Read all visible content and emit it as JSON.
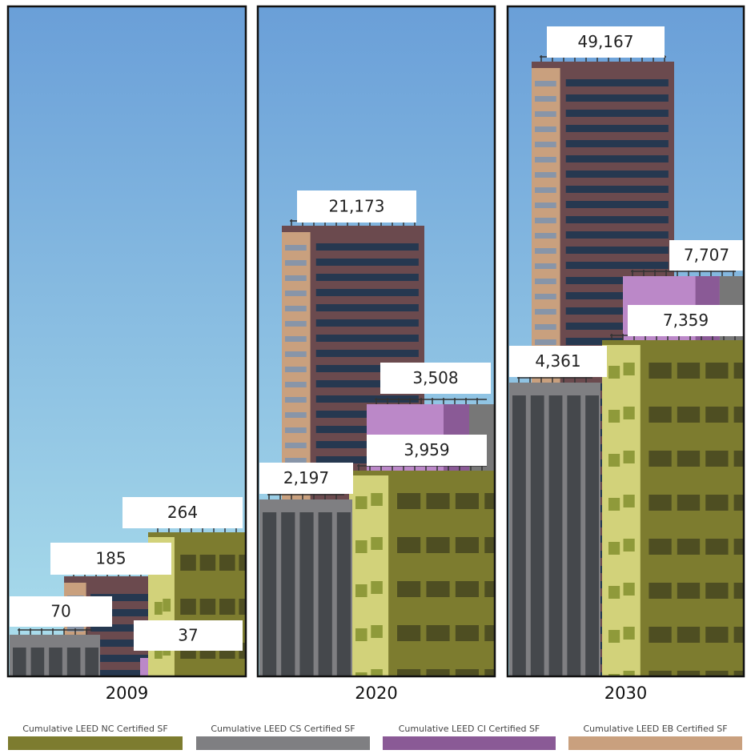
{
  "panels": [
    {
      "year": "2009",
      "labels": [
        "264",
        "70",
        "37",
        "185"
      ]
    },
    {
      "year": "2020",
      "labels": [
        "3,959",
        "2,197",
        "3,508",
        "21,173"
      ]
    },
    {
      "year": "2030",
      "labels": [
        "7,359",
        "4,361",
        "7,707",
        "49,167"
      ]
    }
  ],
  "legend": [
    {
      "label": "Cumulative LEED NC Certified SF",
      "color": "#7d7c2f"
    },
    {
      "label": "Cumulative LEED CS Certified SF",
      "color": "#7f7f82"
    },
    {
      "label": "Cumulative LEED CI Certified SF",
      "color": "#8a5a96"
    },
    {
      "label": "Cumulative LEED EB Certified SF",
      "color": "#c9a07e"
    }
  ]
}
